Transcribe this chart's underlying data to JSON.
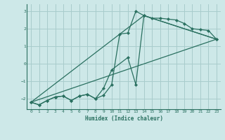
{
  "xlabel": "Humidex (Indice chaleur)",
  "background_color": "#cde8e8",
  "grid_color": "#a8cccc",
  "line_color": "#2a7060",
  "xlim": [
    -0.5,
    23.5
  ],
  "ylim": [
    -2.6,
    3.4
  ],
  "yticks": [
    -2,
    -1,
    0,
    1,
    2,
    3
  ],
  "xticks": [
    0,
    1,
    2,
    3,
    4,
    5,
    6,
    7,
    8,
    9,
    10,
    11,
    12,
    13,
    14,
    15,
    16,
    17,
    18,
    19,
    20,
    21,
    22,
    23
  ],
  "line_main": {
    "x": [
      0,
      1,
      2,
      3,
      4,
      5,
      6,
      7,
      8,
      9,
      10,
      11,
      12,
      13,
      14,
      15,
      16,
      17,
      18,
      19,
      20,
      21,
      22,
      23
    ],
    "y": [
      -2.2,
      -2.35,
      -2.1,
      -1.9,
      -1.85,
      -2.1,
      -1.85,
      -1.75,
      -2.0,
      -1.8,
      -1.2,
      1.7,
      1.75,
      3.0,
      2.75,
      2.6,
      2.6,
      2.55,
      2.5,
      2.3,
      2.0,
      1.95,
      1.9,
      1.4
    ]
  },
  "line_straight1": {
    "x": [
      0,
      23
    ],
    "y": [
      -2.2,
      1.4
    ]
  },
  "line_straight2": {
    "x": [
      0,
      14,
      23
    ],
    "y": [
      -2.2,
      2.75,
      1.4
    ]
  },
  "line_zigzag2": {
    "x": [
      0,
      1,
      2,
      3,
      4,
      5,
      6,
      7,
      8,
      9,
      10,
      12,
      13,
      14,
      23
    ],
    "y": [
      -2.2,
      -2.35,
      -2.1,
      -1.9,
      -1.85,
      -2.1,
      -1.85,
      -1.75,
      -2.0,
      -1.4,
      -0.35,
      0.35,
      -1.2,
      2.75,
      1.4
    ]
  }
}
